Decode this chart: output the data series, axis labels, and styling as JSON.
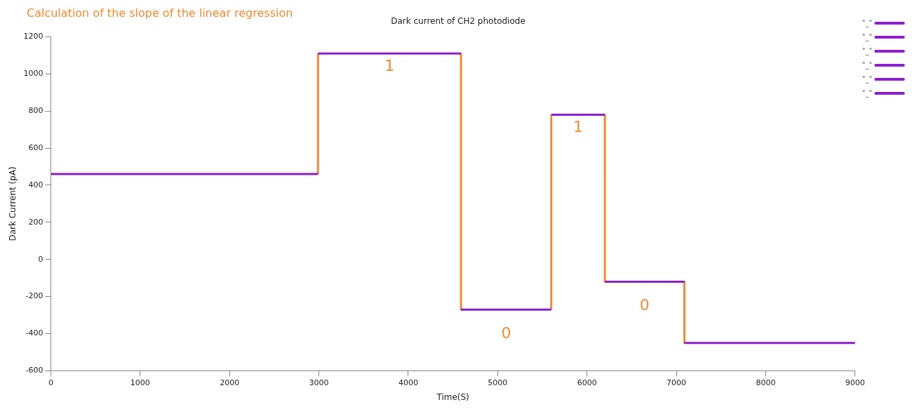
{
  "chart_data": {
    "type": "line",
    "title": "Dark current of CH2 photodiode",
    "xlabel": "Time(S)",
    "ylabel": "Dark Current (pA)",
    "annotations": [
      "Calculation of the slope of the linear regression",
      "1",
      "0",
      "1",
      "0"
    ],
    "xlim": [
      0,
      9000
    ],
    "xticks": [
      0,
      1000,
      2000,
      3000,
      4000,
      5000,
      6000,
      7000,
      8000,
      9000
    ],
    "ylim": [
      -600,
      1200
    ],
    "yticks": [
      -600,
      -400,
      -200,
      0,
      200,
      400,
      600,
      800,
      1000,
      1200
    ],
    "grid": false,
    "legend": "top right",
    "marker": "none",
    "line_style": "solid",
    "series": [
      {
        "color": "#f08a33",
        "x": [
          2990,
          2990
        ],
        "values": [
          460,
          1110
        ]
      },
      {
        "color": "#f08a33",
        "x": [
          4590,
          4590
        ],
        "values": [
          1110,
          -270
        ]
      },
      {
        "color": "#f08a33",
        "x": [
          5600,
          5600
        ],
        "values": [
          -270,
          780
        ]
      },
      {
        "color": "#f08a33",
        "x": [
          6200,
          6200
        ],
        "values": [
          780,
          -120
        ]
      },
      {
        "color": "#f08a33",
        "x": [
          7090,
          7090
        ],
        "values": [
          -120,
          -450
        ]
      },
      {
        "name": "\"_\"",
        "color": "#8a1fd0",
        "x": [
          0,
          2990
        ],
        "values": [
          460,
          460
        ]
      },
      {
        "name": "\"_\"",
        "color": "#8a1fd0",
        "x": [
          2990,
          4590
        ],
        "values": [
          1110,
          1110
        ]
      },
      {
        "name": "\"_\"",
        "color": "#8a1fd0",
        "x": [
          4590,
          5600
        ],
        "values": [
          -270,
          -270
        ]
      },
      {
        "name": "\"_\"",
        "color": "#8a1fd0",
        "x": [
          5600,
          6200
        ],
        "values": [
          780,
          780
        ]
      },
      {
        "name": "\"_\"",
        "color": "#8a1fd0",
        "x": [
          6200,
          7090
        ],
        "values": [
          -120,
          -120
        ]
      },
      {
        "name": "\"_\"",
        "color": "#8a1fd0",
        "x": [
          7090,
          9000
        ],
        "values": [
          -450,
          -450
        ]
      }
    ]
  }
}
